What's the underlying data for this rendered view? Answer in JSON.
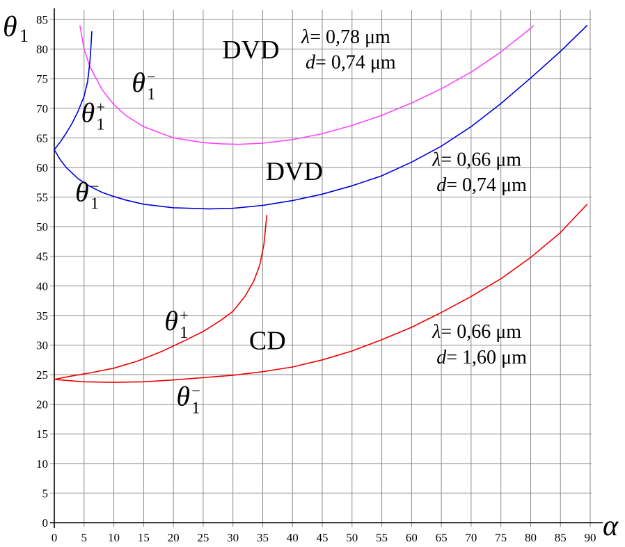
{
  "chart_data": {
    "type": "line",
    "xlabel": "α",
    "ylabel": "θ",
    "ylabel_sub": "1",
    "xlim": [
      0,
      90
    ],
    "ylim": [
      0,
      85
    ],
    "xticks": [
      0,
      5,
      10,
      15,
      20,
      25,
      30,
      35,
      40,
      45,
      50,
      55,
      60,
      65,
      70,
      75,
      80,
      85,
      90
    ],
    "yticks": [
      0,
      5,
      10,
      15,
      20,
      25,
      30,
      35,
      40,
      45,
      50,
      55,
      60,
      65,
      70,
      75,
      80,
      85
    ],
    "grid": true,
    "colors": {
      "dvd078": "#ff44ff",
      "dvd066": "#0000dd",
      "cd": "#ee0000",
      "grid": "#8a8a8a",
      "axis": "#000000"
    },
    "series": [
      {
        "color": "#ff44ff",
        "points": [
          [
            4.3,
            84
          ],
          [
            5,
            80
          ],
          [
            6,
            77
          ],
          [
            8,
            73.2
          ],
          [
            10,
            70.6
          ],
          [
            12,
            68.8
          ],
          [
            15,
            66.9
          ],
          [
            20,
            65
          ],
          [
            25,
            64.2
          ],
          [
            28,
            64.0
          ],
          [
            31,
            63.9
          ],
          [
            35,
            64.1
          ],
          [
            40,
            64.7
          ],
          [
            45,
            65.7
          ],
          [
            50,
            67.1
          ],
          [
            55,
            68.8
          ],
          [
            60,
            70.9
          ],
          [
            65,
            73.3
          ],
          [
            70,
            76.1
          ],
          [
            75,
            79.5
          ],
          [
            80,
            83.5
          ],
          [
            80.5,
            84
          ]
        ]
      },
      {
        "color": "#0000dd",
        "points": [
          [
            0,
            63
          ],
          [
            1,
            61.3
          ],
          [
            2,
            60
          ],
          [
            4,
            58.1
          ],
          [
            6,
            56.8
          ],
          [
            8,
            55.8
          ],
          [
            10,
            55.1
          ],
          [
            12,
            54.5
          ],
          [
            15,
            53.8
          ],
          [
            20,
            53.2
          ],
          [
            26,
            53.0
          ],
          [
            30,
            53.1
          ],
          [
            35,
            53.6
          ],
          [
            40,
            54.4
          ],
          [
            45,
            55.5
          ],
          [
            50,
            56.9
          ],
          [
            55,
            58.6
          ],
          [
            60,
            60.9
          ],
          [
            65,
            63.6
          ],
          [
            70,
            66.9
          ],
          [
            75,
            70.8
          ],
          [
            80,
            75.1
          ],
          [
            85,
            79.6
          ],
          [
            89.5,
            84
          ]
        ]
      },
      {
        "color": "#0000dd",
        "points": [
          [
            0,
            63
          ],
          [
            1,
            64.3
          ],
          [
            2,
            65.8
          ],
          [
            3,
            67.5
          ],
          [
            4,
            69.5
          ],
          [
            5,
            72
          ],
          [
            5.6,
            74.5
          ],
          [
            6,
            78
          ],
          [
            6.2,
            81
          ],
          [
            6.3,
            83
          ]
        ]
      },
      {
        "color": "#ee0000",
        "points": [
          [
            0,
            24.2
          ],
          [
            3,
            24.8
          ],
          [
            6,
            25.3
          ],
          [
            10,
            26.1
          ],
          [
            14,
            27.3
          ],
          [
            18,
            28.9
          ],
          [
            22,
            30.8
          ],
          [
            25,
            32.3
          ],
          [
            28,
            34.2
          ],
          [
            30,
            35.7
          ],
          [
            32,
            38.2
          ],
          [
            33.5,
            40.8
          ],
          [
            34.5,
            43.5
          ],
          [
            35.2,
            47
          ],
          [
            35.5,
            50
          ],
          [
            35.7,
            52
          ]
        ]
      },
      {
        "color": "#ee0000",
        "points": [
          [
            0,
            24.2
          ],
          [
            5,
            23.8
          ],
          [
            10,
            23.7
          ],
          [
            15,
            23.8
          ],
          [
            20,
            24.1
          ],
          [
            25,
            24.5
          ],
          [
            30,
            24.9
          ],
          [
            35,
            25.5
          ],
          [
            40,
            26.3
          ],
          [
            45,
            27.5
          ],
          [
            50,
            29.0
          ],
          [
            55,
            30.9
          ],
          [
            60,
            33.0
          ],
          [
            65,
            35.5
          ],
          [
            70,
            38.2
          ],
          [
            75,
            41.2
          ],
          [
            80,
            44.8
          ],
          [
            85,
            49.0
          ],
          [
            89.5,
            53.8
          ]
        ]
      }
    ],
    "annotations": [
      {
        "id": "dvd-top-title",
        "text": "DVD",
        "x": 33,
        "y": 78.4,
        "size": 38
      },
      {
        "id": "dvd-mid-title",
        "text": "DVD",
        "x": 40.3,
        "y": 57.9,
        "size": 38
      },
      {
        "id": "cd-title",
        "text": "CD",
        "x": 35.8,
        "y": 29.3,
        "size": 38
      }
    ],
    "param_labels": [
      {
        "id": "params-dvd078",
        "lambda": "= 0,78 μm",
        "d": "= 0,74 μm",
        "x": 41.5,
        "y_lambda": 81,
        "y_d": 76.7
      },
      {
        "id": "params-dvd066",
        "lambda": "= 0,66 μm",
        "d": "= 0,74 μm",
        "x": 63.5,
        "y_lambda": 60.3,
        "y_d": 56.0
      },
      {
        "id": "params-cd",
        "lambda": "= 0,66 μm",
        "d": "= 1,60 μm",
        "x": 63.5,
        "y_lambda": 31.2,
        "y_d": 26.9
      }
    ],
    "theta_labels": [
      {
        "id": "theta-minus-dvd078",
        "sign": "−",
        "x": 13,
        "y": 72.8
      },
      {
        "id": "theta-plus-dvd066",
        "sign": "+",
        "x": 4.5,
        "y": 67.7
      },
      {
        "id": "theta-minus-dvd066",
        "sign": "−",
        "x": 3.5,
        "y": 54.3
      },
      {
        "id": "theta-plus-cd",
        "sign": "+",
        "x": 18.5,
        "y": 32.5
      },
      {
        "id": "theta-minus-cd",
        "sign": "−",
        "x": 20.5,
        "y": 19.8
      }
    ],
    "param_symbols": {
      "lambda": "λ",
      "d": "d"
    },
    "theta_symbol": "θ",
    "theta_sub": "1"
  }
}
